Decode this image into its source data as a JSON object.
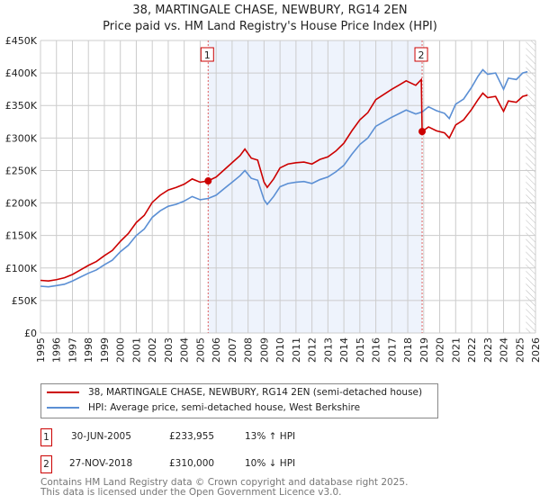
{
  "title": "38, MARTINGALE CHASE, NEWBURY, RG14 2EN",
  "subtitle": "Price paid vs. HM Land Registry's House Price Index (HPI)",
  "chart_data": {
    "type": "line",
    "xlim": [
      1995,
      2026
    ],
    "ylim": [
      0,
      450000
    ],
    "x_ticks": [
      "1995",
      "1996",
      "1997",
      "1998",
      "1999",
      "2000",
      "2001",
      "2002",
      "2003",
      "2004",
      "2005",
      "2006",
      "2007",
      "2008",
      "2009",
      "2010",
      "2011",
      "2012",
      "2013",
      "2014",
      "2015",
      "2016",
      "2017",
      "2018",
      "2019",
      "2020",
      "2021",
      "2022",
      "2023",
      "2024",
      "2025",
      "2026"
    ],
    "y_ticks": [
      {
        "v": 0,
        "label": "£0"
      },
      {
        "v": 50000,
        "label": "£50K"
      },
      {
        "v": 100000,
        "label": "£100K"
      },
      {
        "v": 150000,
        "label": "£150K"
      },
      {
        "v": 200000,
        "label": "£200K"
      },
      {
        "v": 250000,
        "label": "£250K"
      },
      {
        "v": 300000,
        "label": "£300K"
      },
      {
        "v": 350000,
        "label": "£350K"
      },
      {
        "v": 400000,
        "label": "£400K"
      },
      {
        "v": 450000,
        "label": "£450K"
      }
    ],
    "grid": true,
    "shaded_range": [
      2005.5,
      2018.9
    ],
    "hatched_from": 2025.4,
    "series": [
      {
        "name": "38, MARTINGALE CHASE, NEWBURY, RG14 2EN (semi-detached house)",
        "color": "#cc0000",
        "x": [
          1995.0,
          1995.5,
          1996.0,
          1996.5,
          1997.0,
          1997.5,
          1998.0,
          1998.5,
          1999.0,
          1999.5,
          2000.0,
          2000.5,
          2001.0,
          2001.5,
          2002.0,
          2002.5,
          2003.0,
          2003.5,
          2004.0,
          2004.5,
          2005.0,
          2005.5,
          2006.0,
          2006.5,
          2007.0,
          2007.5,
          2007.8,
          2008.2,
          2008.6,
          2009.0,
          2009.2,
          2009.6,
          2010.0,
          2010.5,
          2011.0,
          2011.5,
          2012.0,
          2012.5,
          2013.0,
          2013.5,
          2014.0,
          2014.5,
          2015.0,
          2015.5,
          2016.0,
          2016.5,
          2017.0,
          2017.5,
          2017.9,
          2018.5,
          2018.85,
          2018.9,
          2019.3,
          2019.8,
          2020.3,
          2020.6,
          2021.0,
          2021.5,
          2022.0,
          2022.4,
          2022.7,
          2023.0,
          2023.5,
          2023.8,
          2024.0,
          2024.3,
          2024.8,
          2025.2,
          2025.5
        ],
        "y": [
          81000,
          80000,
          82000,
          85000,
          90000,
          97000,
          104000,
          110000,
          119000,
          127000,
          141000,
          153000,
          170000,
          181000,
          201000,
          212000,
          220000,
          224000,
          229000,
          237000,
          232000,
          234000,
          240000,
          251000,
          262000,
          273000,
          283000,
          269000,
          266000,
          232000,
          224000,
          237000,
          254000,
          260000,
          262000,
          263000,
          260000,
          267000,
          271000,
          280000,
          292000,
          311000,
          328000,
          339000,
          359000,
          367000,
          375000,
          382000,
          388000,
          381000,
          390000,
          310000,
          317000,
          311000,
          308000,
          300000,
          320000,
          328000,
          344000,
          359000,
          369000,
          362000,
          364000,
          350000,
          341000,
          357000,
          355000,
          364000,
          366000
        ]
      },
      {
        "name": "HPI: Average price, semi-detached house, West Berkshire",
        "color": "#5b8fd4",
        "x": [
          1995.0,
          1995.5,
          1996.0,
          1996.5,
          1997.0,
          1997.5,
          1998.0,
          1998.5,
          1999.0,
          1999.5,
          2000.0,
          2000.5,
          2001.0,
          2001.5,
          2002.0,
          2002.5,
          2003.0,
          2003.5,
          2004.0,
          2004.5,
          2005.0,
          2005.5,
          2006.0,
          2006.5,
          2007.0,
          2007.5,
          2007.8,
          2008.2,
          2008.6,
          2009.0,
          2009.2,
          2009.6,
          2010.0,
          2010.5,
          2011.0,
          2011.5,
          2012.0,
          2012.5,
          2013.0,
          2013.5,
          2014.0,
          2014.5,
          2015.0,
          2015.5,
          2016.0,
          2016.5,
          2017.0,
          2017.5,
          2017.9,
          2018.5,
          2018.9,
          2019.3,
          2019.8,
          2020.3,
          2020.6,
          2021.0,
          2021.5,
          2022.0,
          2022.4,
          2022.7,
          2023.0,
          2023.5,
          2023.8,
          2024.0,
          2024.3,
          2024.8,
          2025.2,
          2025.5
        ],
        "y": [
          72000,
          71000,
          73000,
          75000,
          80000,
          86000,
          92000,
          97000,
          105000,
          112000,
          125000,
          135000,
          150000,
          160000,
          178000,
          188000,
          195000,
          198000,
          203000,
          210000,
          205000,
          207000,
          212000,
          222000,
          232000,
          242000,
          250000,
          238000,
          235000,
          205000,
          198000,
          210000,
          225000,
          230000,
          232000,
          233000,
          230000,
          236000,
          240000,
          248000,
          258000,
          275000,
          290000,
          300000,
          318000,
          325000,
          332000,
          338000,
          343000,
          337000,
          340000,
          348000,
          342000,
          338000,
          330000,
          352000,
          360000,
          378000,
          395000,
          405000,
          398000,
          400000,
          385000,
          375000,
          392000,
          390000,
          400000,
          402000
        ]
      }
    ],
    "sales": [
      {
        "label": "1",
        "x": 2005.5,
        "y": 233955
      },
      {
        "label": "2",
        "x": 2018.9,
        "y": 310000
      }
    ]
  },
  "legend": {
    "red": "38, MARTINGALE CHASE, NEWBURY, RG14 2EN (semi-detached house)",
    "blue": "HPI: Average price, semi-detached house, West Berkshire"
  },
  "transactions": [
    {
      "num": "1",
      "date": "30-JUN-2005",
      "price": "£233,955",
      "hpi": "13% ↑ HPI"
    },
    {
      "num": "2",
      "date": "27-NOV-2018",
      "price": "£310,000",
      "hpi": "10% ↓ HPI"
    }
  ],
  "footer": {
    "line1": "Contains HM Land Registry data © Crown copyright and database right 2025.",
    "line2": "This data is licensed under the Open Government Licence v3.0."
  }
}
